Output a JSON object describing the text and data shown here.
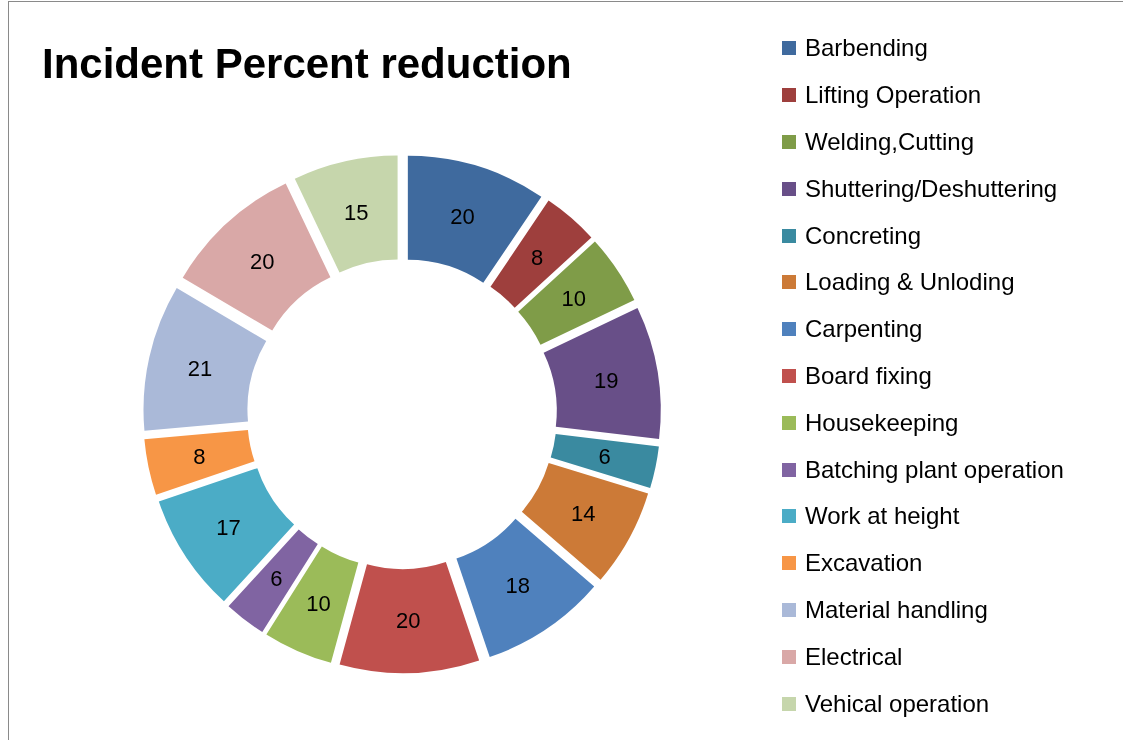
{
  "chart_data": {
    "type": "donut",
    "title": "Incident Percent reduction",
    "categories": [
      "Barbending",
      "Lifting Operation",
      "Welding,Cutting",
      "Shuttering/Deshuttering",
      "Concreting",
      "Loading & Unloding",
      "Carpenting",
      "Board fixing",
      "Housekeeping",
      "Batching plant operation",
      "Work at height",
      "Excavation",
      "Material handling",
      "Electrical",
      "Vehical operation"
    ],
    "values": [
      20,
      8,
      10,
      19,
      6,
      14,
      18,
      20,
      10,
      6,
      17,
      8,
      21,
      20,
      15
    ],
    "colors": [
      "#3f6a9e",
      "#9e3f3d",
      "#7f9c48",
      "#684f88",
      "#3a8aa0",
      "#cc7a37",
      "#4f81bd",
      "#c0504d",
      "#9bbb59",
      "#8064a2",
      "#4bacc6",
      "#f79646",
      "#aab9d8",
      "#d9a8a7",
      "#c6d6ac"
    ],
    "data_labels": true,
    "legend": "right"
  }
}
